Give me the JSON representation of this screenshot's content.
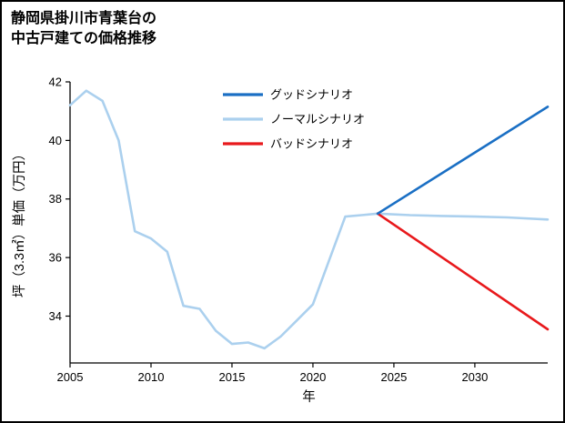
{
  "page": {
    "title_line1": "静岡県掛川市青葉台の",
    "title_line2": "中古戸建ての価格推移"
  },
  "chart_data": {
    "type": "line",
    "title": "静岡県掛川市青葉台の中古戸建ての価格推移",
    "xlabel": "年",
    "ylabel": "坪（3.3㎡）単価（万円）",
    "xlim": [
      2005,
      2034.5
    ],
    "ylim": [
      32.4,
      42
    ],
    "xticks": [
      2005,
      2010,
      2015,
      2020,
      2025,
      2030
    ],
    "yticks": [
      34,
      36,
      38,
      40,
      42
    ],
    "grid": false,
    "legend_position": "upper-center-inside-no-frame",
    "legend": [
      {
        "label": "グッドシナリオ",
        "color": "#1a6fc4"
      },
      {
        "label": "ノーマルシナリオ",
        "color": "#abd0ee"
      },
      {
        "label": "バッドシナリオ",
        "color": "#e8191c"
      }
    ],
    "series": [
      {
        "name": "ノーマルシナリオ",
        "color": "#abd0ee",
        "x": [
          2005,
          2006,
          2007,
          2008,
          2009,
          2010,
          2011,
          2012,
          2013,
          2014,
          2015,
          2016,
          2017,
          2018,
          2019,
          2020,
          2021,
          2022,
          2023,
          2024,
          2026,
          2028,
          2030,
          2032,
          2034.5
        ],
        "y": [
          41.2,
          41.7,
          41.35,
          40.0,
          36.9,
          36.65,
          36.2,
          34.35,
          34.25,
          33.5,
          33.05,
          33.1,
          32.9,
          33.3,
          33.85,
          34.4,
          35.9,
          37.4,
          37.45,
          37.5,
          37.45,
          37.42,
          37.4,
          37.37,
          37.3
        ]
      },
      {
        "name": "バッドシナリオ",
        "color": "#e8191c",
        "x": [
          2024,
          2034.5
        ],
        "y": [
          37.5,
          33.55
        ]
      },
      {
        "name": "グッドシナリオ",
        "color": "#1a6fc4",
        "x": [
          2024,
          2034.5
        ],
        "y": [
          37.5,
          41.15
        ]
      }
    ]
  }
}
